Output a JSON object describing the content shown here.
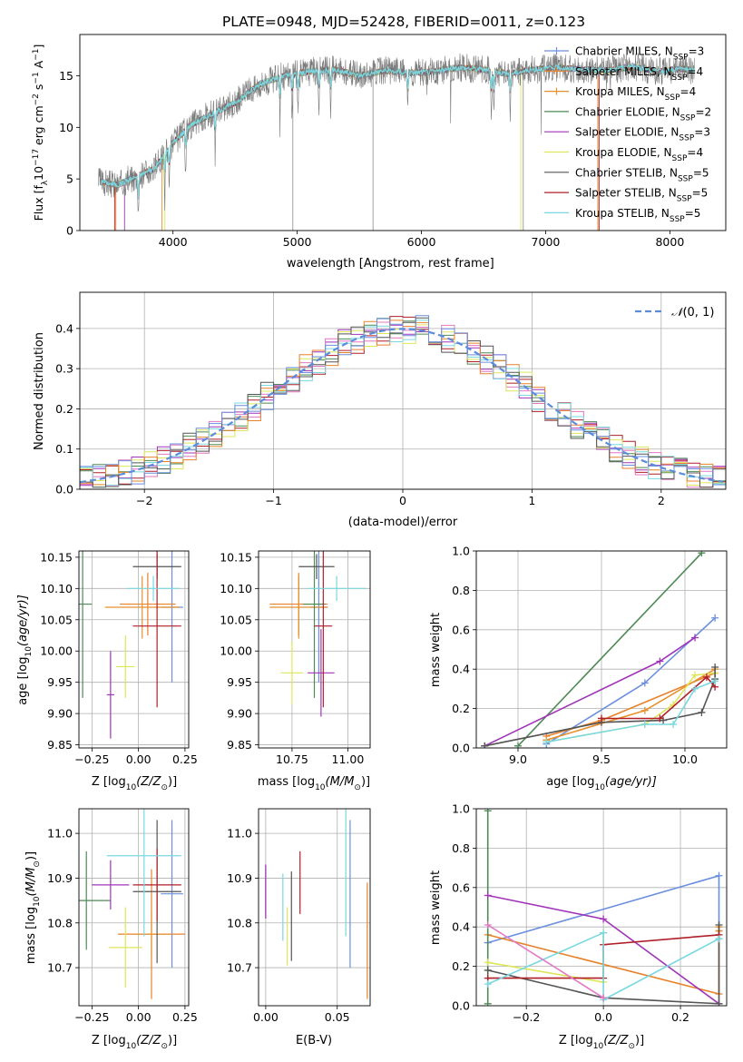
{
  "figure_title": "PLATE=0948, MJD=52428, FIBERID=0011, z=0.123",
  "series": [
    {
      "name": "Chabrier MILES, N_SSP=3",
      "color": "#6a8fde"
    },
    {
      "name": "Salpeter MILES, N_SSP=4",
      "color": "#e8822a"
    },
    {
      "name": "Kroupa MILES, N_SSP=4",
      "color": "#e6912e"
    },
    {
      "name": "Chabrier ELODIE, N_SSP=2",
      "color": "#4e8a55"
    },
    {
      "name": "Salpeter ELODIE, N_SSP=3",
      "color": "#a035b8"
    },
    {
      "name": "Kroupa ELODIE, N_SSP=4",
      "color": "#dde65a"
    },
    {
      "name": "Chabrier STELIB, N_SSP=5",
      "color": "#555555"
    },
    {
      "name": "Salpeter STELIB, N_SSP=5",
      "color": "#b01e28"
    },
    {
      "name": "Kroupa STELIB, N_SSP=5",
      "color": "#7ad8e0"
    }
  ],
  "chart_data": [
    {
      "type": "line",
      "panel": "spectrum",
      "xlabel": "wavelength [Angstrom, rest frame]",
      "ylabel_parts": [
        "Flux [f",
        "λ",
        "10",
        "−17",
        " erg cm",
        "−2",
        " s",
        "−1",
        " A",
        "−1",
        "]"
      ],
      "xlim": [
        3250,
        8450
      ],
      "ylim": [
        0,
        19
      ],
      "xticks": [
        4000,
        5000,
        6000,
        7000,
        8000
      ],
      "yticks": [
        0,
        5,
        10,
        15
      ],
      "legend_labels": [
        {
          "main": "Chabrier MILES, N",
          "sub": "SSP",
          "tail": "=3"
        },
        {
          "main": "Salpeter MILES, N",
          "sub": "SSP",
          "tail": "=4"
        },
        {
          "main": "Kroupa MILES, N",
          "sub": "SSP",
          "tail": "=4"
        },
        {
          "main": "Chabrier ELODIE, N",
          "sub": "SSP",
          "tail": "=2"
        },
        {
          "main": "Salpeter ELODIE, N",
          "sub": "SSP",
          "tail": "=3"
        },
        {
          "main": "Kroupa ELODIE, N",
          "sub": "SSP",
          "tail": "=4"
        },
        {
          "main": "Chabrier STELIB, N",
          "sub": "SSP",
          "tail": "=5"
        },
        {
          "main": "Salpeter STELIB, N",
          "sub": "SSP",
          "tail": "=5"
        },
        {
          "main": "Kroupa STELIB, N",
          "sub": "SSP",
          "tail": "=5"
        }
      ],
      "data_continuum": {
        "x": [
          3400,
          3550,
          3700,
          3850,
          4000,
          4150,
          4300,
          4500,
          4700,
          4900,
          5100,
          5300,
          5500,
          5700,
          5900,
          6100,
          6300,
          6500,
          6700,
          6900,
          7100,
          7300,
          7500,
          7700,
          7900,
          8100,
          8200
        ],
        "y": [
          4.8,
          4.4,
          5.2,
          6.0,
          8.5,
          10.3,
          11.2,
          12.4,
          14.2,
          15.0,
          15.4,
          15.6,
          15.0,
          15.5,
          15.3,
          15.4,
          15.8,
          15.6,
          15.2,
          15.6,
          15.8,
          15.6,
          15.5,
          15.9,
          15.4,
          15.7,
          15.5
        ]
      },
      "absorption_lines": [
        3720,
        3934,
        3969,
        4102,
        4340,
        4861,
        4959,
        5007,
        5176,
        5270,
        5890,
        6563,
        6583,
        6716
      ]
    },
    {
      "type": "bar",
      "panel": "residual-histogram",
      "xlabel": "(data-model)/error",
      "ylabel": "Normed distribution",
      "xlim": [
        -2.5,
        2.5
      ],
      "ylim": [
        0,
        0.49
      ],
      "xticks": [
        -2,
        -1,
        0,
        1,
        2
      ],
      "yticks": [
        0.0,
        0.1,
        0.2,
        0.3,
        0.4
      ],
      "reference_curve": {
        "name": "N(0,1)",
        "label_parts": [
          "𝒩",
          "(0, 1)"
        ],
        "mu": 0,
        "sigma": 1,
        "color": "#5b8ddb"
      },
      "bin_width": 0.1
    },
    {
      "type": "scatter",
      "panel": "age-vs-Z",
      "xlabel_parts": [
        "Z [log",
        "10",
        "(Z/Z",
        "⊙",
        ")]"
      ],
      "ylabel_parts": [
        "age  [log",
        "10",
        "(age/yr)]"
      ],
      "xlim": [
        -0.32,
        0.27
      ],
      "ylim": [
        9.845,
        10.16
      ],
      "xticks": [
        -0.25,
        0.0,
        0.25
      ],
      "yticks": [
        9.85,
        9.9,
        9.95,
        10.0,
        10.05,
        10.1,
        10.15
      ],
      "points": [
        {
          "series": 0,
          "x": 0.18,
          "y": 10.07,
          "xerr": 0.06,
          "yerr": 0.12
        },
        {
          "series": 1,
          "x": 0.05,
          "y": 10.075,
          "xerr": 0.15,
          "yerr": 0.05
        },
        {
          "series": 2,
          "x": 0.02,
          "y": 10.07,
          "xerr": 0.2,
          "yerr": 0.05
        },
        {
          "series": 3,
          "x": -0.3,
          "y": 10.075,
          "xerr": 0.05,
          "yerr": 0.15
        },
        {
          "series": 4,
          "x": -0.15,
          "y": 9.93,
          "xerr": 0.02,
          "yerr": 0.07
        },
        {
          "series": 5,
          "x": -0.07,
          "y": 9.975,
          "xerr": 0.05,
          "yerr": 0.05
        },
        {
          "series": 6,
          "x": 0.1,
          "y": 10.135,
          "xerr": 0.13,
          "yerr": 0.02
        },
        {
          "series": 7,
          "x": 0.1,
          "y": 10.04,
          "xerr": 0.13,
          "yerr": 0.13
        },
        {
          "series": 8,
          "x": 0.08,
          "y": 10.1,
          "xerr": 0.14,
          "yerr": 0.02
        }
      ]
    },
    {
      "type": "scatter",
      "panel": "age-vs-mass",
      "xlabel_parts": [
        "mass [log",
        "10",
        "(M/M",
        "⊙",
        ")]"
      ],
      "xlim": [
        10.6,
        11.1
      ],
      "ylim": [
        9.845,
        10.16
      ],
      "xticks": [
        10.75,
        11.0
      ],
      "yticks": [
        9.85,
        9.9,
        9.95,
        10.0,
        10.05,
        10.1,
        10.15
      ],
      "points": [
        {
          "series": 0,
          "x": 10.87,
          "y": 10.07,
          "xerr": 0.04,
          "yerr": 0.12
        },
        {
          "series": 1,
          "x": 10.78,
          "y": 10.075,
          "xerr": 0.13,
          "yerr": 0.05
        },
        {
          "series": 2,
          "x": 10.78,
          "y": 10.07,
          "xerr": 0.13,
          "yerr": 0.05
        },
        {
          "series": 3,
          "x": 10.85,
          "y": 10.075,
          "xerr": 0.05,
          "yerr": 0.15
        },
        {
          "series": 4,
          "x": 10.88,
          "y": 9.965,
          "xerr": 0.06,
          "yerr": 0.07
        },
        {
          "series": 5,
          "x": 10.75,
          "y": 9.965,
          "xerr": 0.05,
          "yerr": 0.05
        },
        {
          "series": 6,
          "x": 10.86,
          "y": 10.135,
          "xerr": 0.08,
          "yerr": 0.02
        },
        {
          "series": 7,
          "x": 10.89,
          "y": 10.04,
          "xerr": 0.04,
          "yerr": 0.13
        },
        {
          "series": 8,
          "x": 10.95,
          "y": 10.1,
          "xerr": 0.13,
          "yerr": 0.02
        }
      ]
    },
    {
      "type": "line",
      "panel": "mass-weight-vs-age",
      "xlabel_parts": [
        "age  [log",
        "10",
        "(age/yr)]"
      ],
      "ylabel": "mass weight",
      "xlim": [
        8.75,
        10.25
      ],
      "ylim": [
        0,
        1.0
      ],
      "xticks": [
        9.0,
        9.5,
        10.0
      ],
      "yticks": [
        0.0,
        0.2,
        0.4,
        0.6,
        0.8,
        1.0
      ],
      "lines": [
        {
          "series": 0,
          "x": [
            9.17,
            9.76,
            10.18
          ],
          "y": [
            0.02,
            0.33,
            0.66
          ]
        },
        {
          "series": 1,
          "x": [
            9.17,
            9.5,
            10.18
          ],
          "y": [
            0.06,
            0.14,
            0.38
          ]
        },
        {
          "series": 2,
          "x": [
            9.17,
            9.76,
            10.18
          ],
          "y": [
            0.04,
            0.19,
            0.4
          ]
        },
        {
          "series": 3,
          "x": [
            9.0,
            10.1
          ],
          "y": [
            0.01,
            0.99
          ]
        },
        {
          "series": 4,
          "x": [
            8.8,
            9.85,
            10.06
          ],
          "y": [
            0.01,
            0.44,
            0.56
          ]
        },
        {
          "series": 5,
          "x": [
            9.17,
            9.76,
            9.93,
            10.06,
            10.18
          ],
          "y": [
            0.03,
            0.12,
            0.22,
            0.37,
            0.38
          ]
        },
        {
          "series": 6,
          "x": [
            8.8,
            9.5,
            9.87,
            10.1,
            10.18,
            10.18
          ],
          "y": [
            0.01,
            0.13,
            0.14,
            0.18,
            0.35,
            0.41
          ]
        },
        {
          "series": 7,
          "x": [
            9.5,
            9.85,
            10.13,
            10.18
          ],
          "y": [
            0.15,
            0.15,
            0.36,
            0.31
          ]
        },
        {
          "series": 8,
          "x": [
            9.17,
            9.76,
            9.93,
            10.06,
            10.18
          ],
          "y": [
            0.03,
            0.12,
            0.12,
            0.3,
            0.34
          ]
        }
      ]
    },
    {
      "type": "scatter",
      "panel": "mass-vs-Z",
      "xlabel_parts": [
        "Z [log",
        "10",
        "(Z/Z",
        "⊙",
        ")]"
      ],
      "ylabel_parts": [
        "mass [log",
        "10",
        "(M/M",
        "⊙",
        ")]"
      ],
      "xlim": [
        -0.32,
        0.27
      ],
      "ylim": [
        10.615,
        11.055
      ],
      "xticks": [
        -0.25,
        0.0,
        0.25
      ],
      "yticks": [
        10.7,
        10.8,
        10.9,
        11.0
      ],
      "points": [
        {
          "series": 0,
          "x": 0.18,
          "y": 10.865,
          "xerr": 0.06,
          "yerr": 0.165
        },
        {
          "series": 1,
          "x": 0.07,
          "y": 10.775,
          "xerr": 0.18,
          "yerr": 0.145
        },
        {
          "series": 2,
          "x": 0.07,
          "y": 10.775,
          "xerr": 0.1,
          "yerr": 0.05
        },
        {
          "series": 3,
          "x": -0.28,
          "y": 10.85,
          "xerr": 0.13,
          "yerr": 0.11
        },
        {
          "series": 4,
          "x": -0.15,
          "y": 10.885,
          "xerr": 0.1,
          "yerr": 0.055
        },
        {
          "series": 5,
          "x": -0.07,
          "y": 10.745,
          "xerr": 0.09,
          "yerr": 0.09
        },
        {
          "series": 6,
          "x": 0.1,
          "y": 10.87,
          "xerr": 0.13,
          "yerr": 0.16
        },
        {
          "series": 7,
          "x": 0.1,
          "y": 10.885,
          "xerr": 0.13,
          "yerr": 0.08
        },
        {
          "series": 8,
          "x": 0.03,
          "y": 10.95,
          "xerr": 0.2,
          "yerr": 0.18
        }
      ]
    },
    {
      "type": "scatter",
      "panel": "mass-vs-EBV",
      "xlabel": "E(B-V)",
      "xlim": [
        -0.005,
        0.073
      ],
      "ylim": [
        10.615,
        11.055
      ],
      "xticks": [
        0.0,
        0.05
      ],
      "yticks": [
        10.7,
        10.8,
        10.9,
        11.0
      ],
      "points": [
        {
          "series": 0,
          "x": 0.059,
          "y": 10.865,
          "yerr": 0.165
        },
        {
          "series": 1,
          "x": 0.071,
          "y": 10.76,
          "yerr": 0.13
        },
        {
          "series": 3,
          "x": 0.0,
          "y": 10.87,
          "yerr": 0.06
        },
        {
          "series": 4,
          "x": 0.0,
          "y": 10.87,
          "yerr": 0.06
        },
        {
          "series": 5,
          "x": 0.015,
          "y": 10.77,
          "yerr": 0.065
        },
        {
          "series": 6,
          "x": 0.018,
          "y": 10.815,
          "yerr": 0.1
        },
        {
          "series": 7,
          "x": 0.024,
          "y": 10.89,
          "yerr": 0.07
        },
        {
          "series": 8,
          "x": 0.012,
          "y": 10.835,
          "yerr": 0.075
        },
        {
          "series": 8,
          "x": 0.056,
          "y": 10.95,
          "yerr": 0.18
        }
      ]
    },
    {
      "type": "line",
      "panel": "mass-weight-vs-Z",
      "xlabel_parts": [
        "Z [log",
        "10",
        "(Z/Z",
        "⊙",
        ")]"
      ],
      "ylabel": "mass weight",
      "xlim": [
        -0.33,
        0.32
      ],
      "ylim": [
        0,
        1.0
      ],
      "xticks": [
        -0.2,
        0.0,
        0.2
      ],
      "yticks": [
        0.0,
        0.2,
        0.4,
        0.6,
        0.8,
        1.0
      ],
      "lines": [
        {
          "series": 0,
          "x": [
            -0.3,
            0.3,
            0.3
          ],
          "y": [
            0.32,
            0.66,
            0.34
          ]
        },
        {
          "series": 1,
          "x": [
            -0.3,
            0.3,
            0.3
          ],
          "y": [
            0.36,
            0.06,
            0.38
          ]
        },
        {
          "series": 2,
          "x": [
            0.3,
            0.3
          ],
          "y": [
            0.38,
            0.4
          ]
        },
        {
          "series": 3,
          "x": [
            -0.3,
            -0.3
          ],
          "y": [
            0.01,
            0.99
          ]
        },
        {
          "series": 4,
          "x": [
            -0.3,
            0.0,
            0.3
          ],
          "y": [
            0.56,
            0.44,
            0.01
          ]
        },
        {
          "series": 5,
          "x": [
            -0.3,
            0.0,
            0.0
          ],
          "y": [
            0.22,
            0.12,
            0.37
          ]
        },
        {
          "series": 6,
          "x": [
            -0.3,
            0.0,
            0.3,
            0.3
          ],
          "y": [
            0.18,
            0.04,
            0.01,
            0.41
          ]
        },
        {
          "series": 7,
          "x": [
            -0.3,
            0.0,
            0.0,
            0.3
          ],
          "y": [
            0.14,
            0.14,
            0.31,
            0.36
          ]
        },
        {
          "series": 8,
          "x": [
            -0.3,
            0.0,
            0.0,
            0.3
          ],
          "y": [
            0.11,
            0.37,
            0.03,
            0.34
          ]
        },
        {
          "series": 8,
          "x": [
            -0.3,
            0.0
          ],
          "y": [
            0.41,
            0.04
          ],
          "color_override": "#e377c2"
        }
      ]
    }
  ]
}
